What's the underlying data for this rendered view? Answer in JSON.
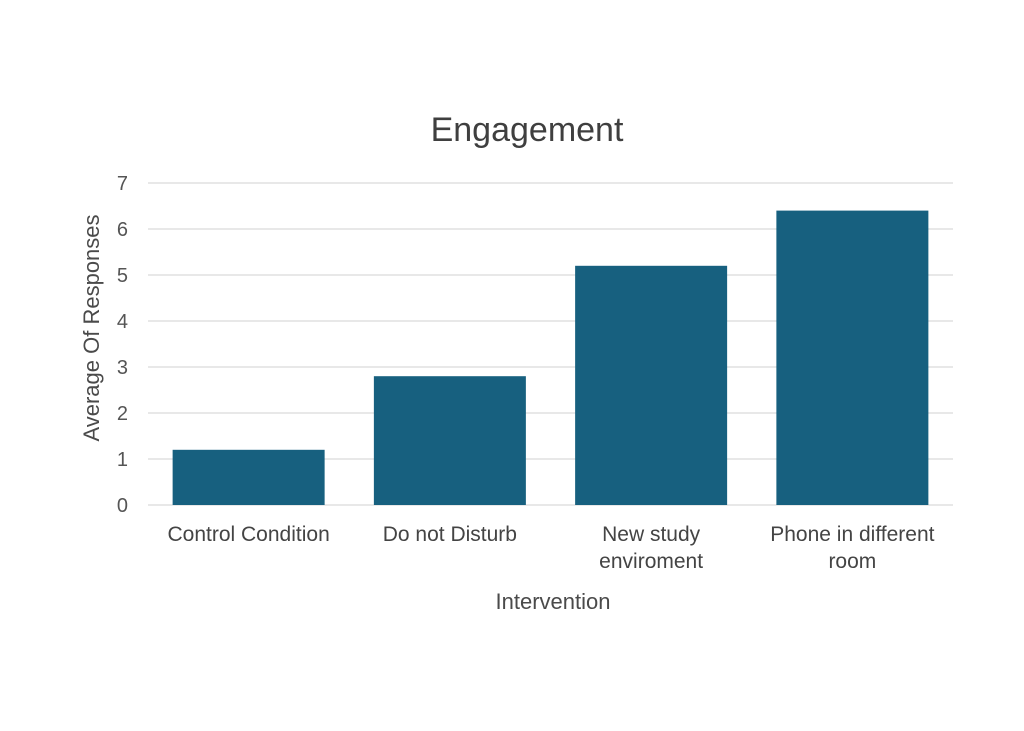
{
  "chart_data": {
    "type": "bar",
    "title": "Engagement",
    "xlabel": "Intervention",
    "ylabel": "Average Of Responses",
    "categories": [
      [
        "Control Condition"
      ],
      [
        "Do not Disturb"
      ],
      [
        "New study",
        "enviroment"
      ],
      [
        "Phone in different",
        "room"
      ]
    ],
    "values": [
      1.2,
      2.8,
      5.2,
      6.4
    ],
    "ylim": [
      0,
      7
    ],
    "yticks": [
      "0",
      "1",
      "2",
      "3",
      "4",
      "5",
      "6",
      "7"
    ],
    "grid": true,
    "legend": "none",
    "bar_color": "#17607f"
  }
}
